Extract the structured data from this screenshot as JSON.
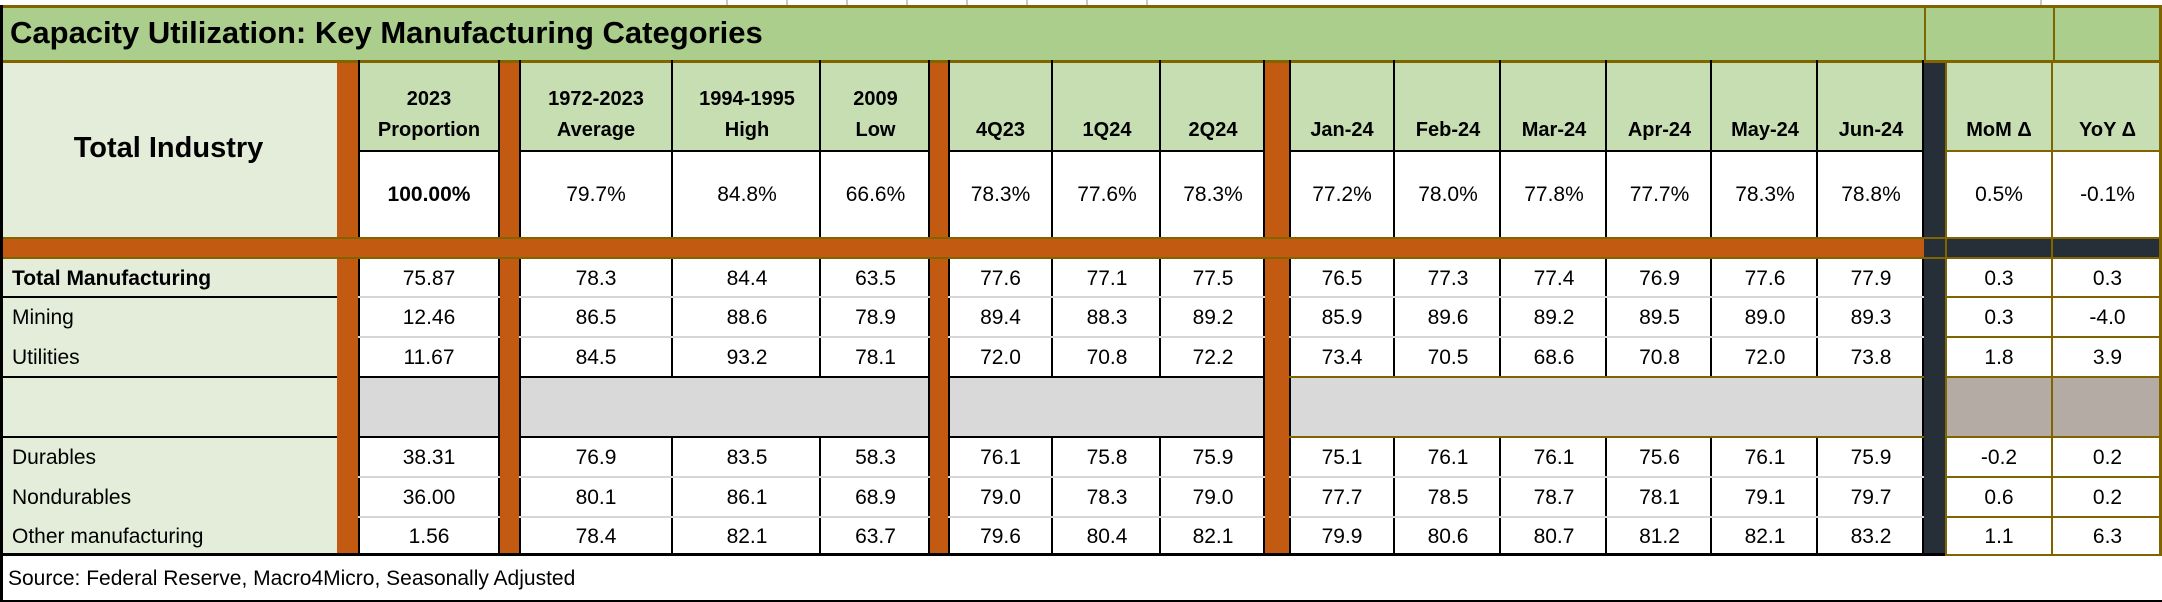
{
  "title": "Capacity Utilization: Key Manufacturing Categories",
  "source_note": "Source: Federal Reserve, Macro4Micro, Seasonally Adjusted",
  "table": {
    "corner_label": "Total Industry",
    "columns": [
      {
        "line1": "2023",
        "line2": "Proportion"
      },
      {
        "line1": "1972-2023",
        "line2": "Average"
      },
      {
        "line1": "1994-1995",
        "line2": "High"
      },
      {
        "line1": "2009",
        "line2": "Low"
      },
      {
        "label": "4Q23"
      },
      {
        "label": "1Q24"
      },
      {
        "label": "2Q24"
      },
      {
        "label": "Jan-24"
      },
      {
        "label": "Feb-24"
      },
      {
        "label": "Mar-24"
      },
      {
        "label": "Apr-24"
      },
      {
        "label": "May-24"
      },
      {
        "label": "Jun-24"
      },
      {
        "label": "MoM Δ"
      },
      {
        "label": "YoY Δ"
      }
    ],
    "total_row": {
      "values": [
        "100.00%",
        "79.7%",
        "84.8%",
        "66.6%",
        "78.3%",
        "77.6%",
        "78.3%",
        "77.2%",
        "78.0%",
        "77.8%",
        "77.7%",
        "78.3%",
        "78.8%",
        "0.5%",
        "-0.1%"
      ]
    },
    "rows": [
      {
        "label": "Total Manufacturing",
        "bold": true,
        "values": [
          "75.87",
          "78.3",
          "84.4",
          "63.5",
          "77.6",
          "77.1",
          "77.5",
          "76.5",
          "77.3",
          "77.4",
          "76.9",
          "77.6",
          "77.9",
          "0.3",
          "0.3"
        ]
      },
      {
        "label": "Mining",
        "values": [
          "12.46",
          "86.5",
          "88.6",
          "78.9",
          "89.4",
          "88.3",
          "89.2",
          "85.9",
          "89.6",
          "89.2",
          "89.5",
          "89.0",
          "89.3",
          "0.3",
          "-4.0"
        ]
      },
      {
        "label": "Utilities",
        "values": [
          "11.67",
          "84.5",
          "93.2",
          "78.1",
          "72.0",
          "70.8",
          "72.2",
          "73.4",
          "70.5",
          "68.6",
          "70.8",
          "72.0",
          "73.8",
          "1.8",
          "3.9"
        ]
      },
      {
        "spacer": true
      },
      {
        "label": "Durables",
        "values": [
          "38.31",
          "76.9",
          "83.5",
          "58.3",
          "76.1",
          "75.8",
          "75.9",
          "75.1",
          "76.1",
          "76.1",
          "75.6",
          "76.1",
          "75.9",
          "-0.2",
          "0.2"
        ]
      },
      {
        "label": "Nondurables",
        "values": [
          "36.00",
          "80.1",
          "86.1",
          "68.9",
          "79.0",
          "78.3",
          "79.0",
          "77.7",
          "78.5",
          "78.7",
          "78.1",
          "79.1",
          "79.7",
          "0.6",
          "0.2"
        ]
      },
      {
        "label": "Other manufacturing",
        "values": [
          "1.56",
          "78.4",
          "82.1",
          "63.7",
          "79.6",
          "80.4",
          "82.1",
          "79.9",
          "80.6",
          "80.7",
          "81.2",
          "82.1",
          "83.2",
          "1.1",
          "6.3"
        ]
      }
    ]
  },
  "colors": {
    "title_green": "#abce8c",
    "header_green": "#c7deb2",
    "label_green": "#e3edda",
    "orange": "#c35a11",
    "gold": "#7f6400",
    "dark_slate": "#262f38",
    "spacer_gray": "#d9d9d9",
    "spacer_warm_gray": "#b3aba4",
    "grid_gray": "#d6d6d6",
    "tick_gray": "#c9c9c9",
    "black": "#000000",
    "white": "#ffffff"
  }
}
